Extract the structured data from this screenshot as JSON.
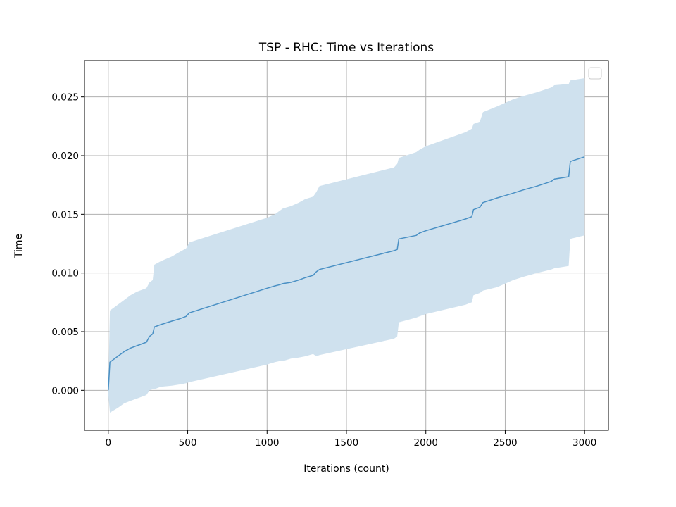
{
  "chart_data": {
    "type": "line",
    "title": "TSP - RHC: Time vs Iterations",
    "xlabel": "Iterations (count)",
    "ylabel": "Time",
    "xlim": [
      -150,
      3150
    ],
    "ylim": [
      -0.0034,
      0.0281
    ],
    "xticks": [
      0,
      500,
      1000,
      1500,
      2000,
      2500,
      3000
    ],
    "xtick_labels": [
      "0",
      "500",
      "1000",
      "1500",
      "2000",
      "2500",
      "3000"
    ],
    "yticks": [
      0.0,
      0.005,
      0.01,
      0.015,
      0.02,
      0.025
    ],
    "ytick_labels": [
      "0.000",
      "0.005",
      "0.010",
      "0.015",
      "0.020",
      "0.025"
    ],
    "grid": true,
    "legend": {
      "position": "top-right",
      "entries": []
    },
    "colors": {
      "line": "#4a90c4",
      "band": "#cfe1ee",
      "grid": "#b0b0b0"
    },
    "series": [
      {
        "x": [
          0,
          10,
          60,
          100,
          140,
          180,
          240,
          260,
          280,
          290,
          330,
          400,
          450,
          490,
          510,
          1000,
          1050,
          1080,
          1100,
          1150,
          1200,
          1240,
          1290,
          1310,
          1330,
          1800,
          1820,
          1830,
          1940,
          1960,
          2000,
          2250,
          2290,
          2300,
          2340,
          2360,
          2450,
          2500,
          2550,
          2620,
          2700,
          2790,
          2810,
          2900,
          2910,
          3000
        ],
        "y": [
          0.0,
          0.0024,
          0.0029,
          0.0033,
          0.0036,
          0.0038,
          0.0041,
          0.0046,
          0.0048,
          0.0054,
          0.0056,
          0.0059,
          0.0061,
          0.0063,
          0.0066,
          0.0087,
          0.0089,
          0.009,
          0.0091,
          0.0092,
          0.0094,
          0.0096,
          0.0098,
          0.0101,
          0.0103,
          0.0119,
          0.012,
          0.0129,
          0.0132,
          0.0134,
          0.0136,
          0.0146,
          0.0148,
          0.0154,
          0.0156,
          0.016,
          0.0164,
          0.0166,
          0.0168,
          0.0171,
          0.0174,
          0.0178,
          0.018,
          0.0182,
          0.0195,
          0.0199
        ],
        "upper": [
          0.0003,
          0.0068,
          0.0073,
          0.0077,
          0.0081,
          0.0084,
          0.0087,
          0.0092,
          0.0094,
          0.0107,
          0.011,
          0.0114,
          0.0118,
          0.0121,
          0.0126,
          0.0147,
          0.015,
          0.0153,
          0.0155,
          0.0157,
          0.016,
          0.0163,
          0.0165,
          0.0169,
          0.0174,
          0.019,
          0.0193,
          0.0198,
          0.0203,
          0.0205,
          0.0208,
          0.022,
          0.0223,
          0.0227,
          0.0229,
          0.0237,
          0.0242,
          0.0245,
          0.0248,
          0.0251,
          0.0254,
          0.0258,
          0.026,
          0.0261,
          0.0264,
          0.0266
        ],
        "lower": [
          -0.0003,
          -0.0019,
          -0.0015,
          -0.0011,
          -0.0009,
          -0.0007,
          -0.0004,
          0.0,
          0.0001,
          0.0001,
          0.0003,
          0.0004,
          0.0005,
          0.0006,
          0.0007,
          0.0022,
          0.0024,
          0.0025,
          0.0025,
          0.0027,
          0.0028,
          0.0029,
          0.0031,
          0.0029,
          0.003,
          0.0044,
          0.0046,
          0.0058,
          0.0062,
          0.0063,
          0.0065,
          0.0073,
          0.0075,
          0.0081,
          0.0083,
          0.0085,
          0.0088,
          0.0091,
          0.0094,
          0.0097,
          0.01,
          0.0103,
          0.0104,
          0.0106,
          0.0129,
          0.0132
        ]
      }
    ]
  }
}
